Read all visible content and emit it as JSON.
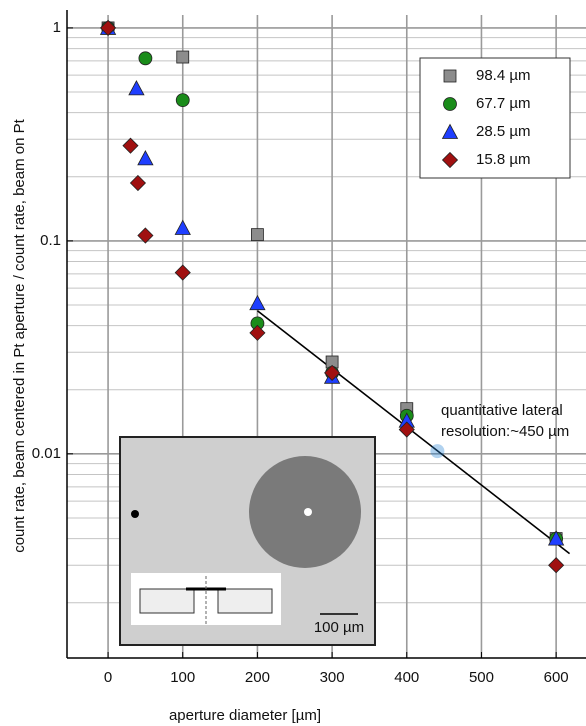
{
  "chart_data": {
    "type": "scatter",
    "y_label": "count rate, beam centered in Pt aperture / count rate, beam on Pt",
    "x_label": "aperture diameter [µm]",
    "xlim": [
      -55,
      640
    ],
    "xticks": [
      0,
      100,
      200,
      300,
      400,
      500,
      600
    ],
    "ylim": [
      0.0011,
      1.15
    ],
    "yticks": [
      1,
      0.1,
      0.01
    ],
    "log_y": true,
    "grid": true,
    "minor_grid": true,
    "legend": "upper-right",
    "series": [
      {
        "name": "98.4 µm",
        "color": "#8c8c8c",
        "marker": "square",
        "x": [
          0,
          100,
          200,
          300,
          400,
          600
        ],
        "values": [
          1,
          0.73,
          0.107,
          0.027,
          0.0163,
          0.004
        ]
      },
      {
        "name": "67.7 µm",
        "color": "#1a8c1a",
        "marker": "circle",
        "x": [
          0,
          50,
          100,
          200,
          300,
          400,
          600
        ],
        "values": [
          1,
          0.72,
          0.458,
          0.041,
          0.024,
          0.0151,
          0.004
        ]
      },
      {
        "name": "28.5 µm",
        "color": "#1f3fff",
        "marker": "triangle",
        "x": [
          0,
          38,
          50,
          100,
          200,
          300,
          400,
          600
        ],
        "values": [
          1,
          0.52,
          0.244,
          0.115,
          0.051,
          0.023,
          0.0143,
          0.004
        ]
      },
      {
        "name": "15.8 µm",
        "color": "#a01010",
        "marker": "diamond",
        "x": [
          0,
          30,
          40,
          50,
          100,
          200,
          300,
          400,
          600
        ],
        "values": [
          1,
          0.28,
          0.187,
          0.106,
          0.071,
          0.037,
          0.024,
          0.013,
          0.003
        ]
      }
    ],
    "fit_line": {
      "color": "#000000",
      "x": [
        200,
        618
      ],
      "values": [
        0.047,
        0.0034
      ]
    },
    "annotation": {
      "text": [
        "quantitative lateral",
        "resolution:~450 µm"
      ],
      "color": "#1f7fd0",
      "x": 441,
      "value": 0.0103
    },
    "inset": {
      "scale_label": "100 µm"
    }
  }
}
